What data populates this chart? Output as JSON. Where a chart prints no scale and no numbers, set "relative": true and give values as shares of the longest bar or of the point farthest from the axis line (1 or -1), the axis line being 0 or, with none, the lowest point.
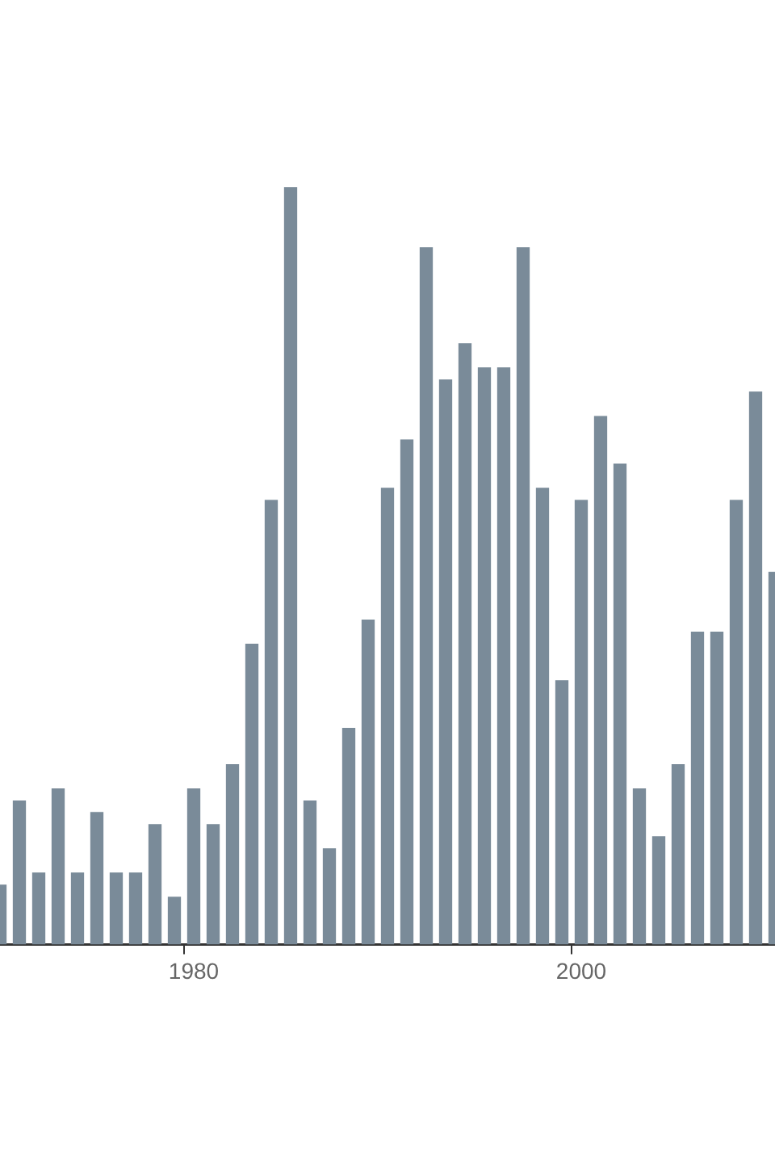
{
  "chart_data": {
    "type": "bar",
    "relative": true,
    "color": "#7a8b99",
    "categories": [
      null,
      null,
      null,
      null,
      null,
      null,
      null,
      null,
      null,
      null,
      "1980",
      null,
      null,
      null,
      null,
      null,
      null,
      null,
      null,
      null,
      null,
      null,
      null,
      null,
      null,
      null,
      null,
      null,
      null,
      null,
      "2000",
      null,
      null,
      null,
      null,
      null,
      null,
      null,
      null,
      null,
      null
    ],
    "values": [
      0.079,
      0.19,
      0.095,
      0.206,
      0.095,
      0.175,
      0.095,
      0.095,
      0.159,
      0.063,
      0.206,
      0.159,
      0.238,
      0.397,
      0.587,
      1,
      0.19,
      0.127,
      0.286,
      0.429,
      0.603,
      0.667,
      0.921,
      0.746,
      0.794,
      0.762,
      0.762,
      0.921,
      0.603,
      0.349,
      0.587,
      0.698,
      0.635,
      0.206,
      0.143,
      0.238,
      0.413,
      0.413,
      0.587,
      0.73,
      0.492
    ]
  }
}
